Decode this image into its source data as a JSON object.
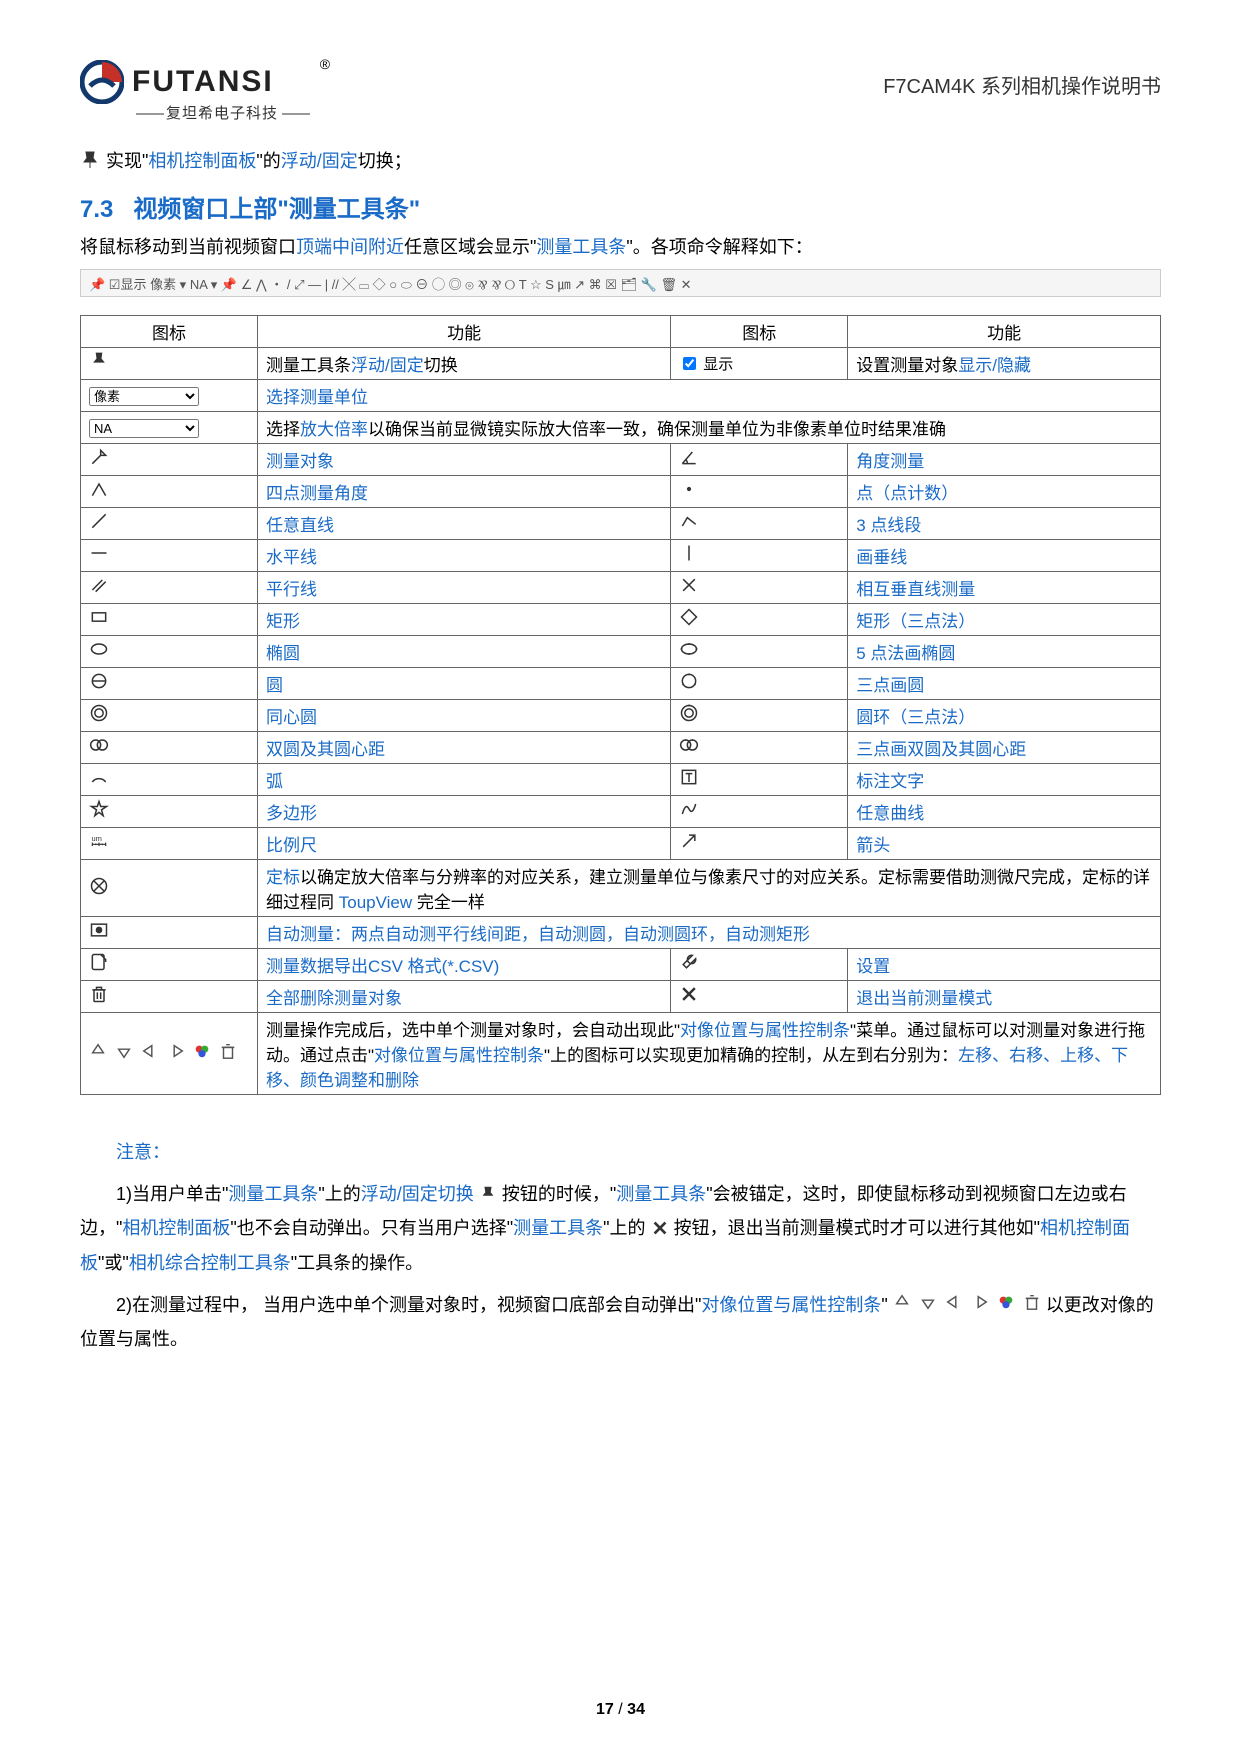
{
  "logo": {
    "name": "FUTANSI",
    "sub": "复坦希电子科技"
  },
  "doc_title": "F7CAM4K 系列相机操作说明书",
  "pin_line": {
    "pre": "实现\"",
    "link1": "相机控制面板",
    "mid": "\"的",
    "link2": "浮动/固定",
    "post": "切换；"
  },
  "section": {
    "num": "7.3",
    "title": "视频窗口上部\"测量工具条\""
  },
  "intro": {
    "t1": "将鼠标移动到当前视频窗口",
    "l1": "顶端中间附近",
    "t2": "任意区域会显示\"",
    "l2": "测量工具条",
    "t3": "\"。各项命令解释如下："
  },
  "toolbar_preview": "📌 ☑显示 像素 ▾ NA ▾  📌 ∠ ⋀ ・ / ⤢ — | // ╳ ▭ ◇ ○ ⬭ ⊖ ◯ ◎ ⊚ ⅋ ⅋ ⭘ T ☆ S ㎛ ↗ ⌘ ☒ 🗂 🔧 🗑 ✕",
  "thead": {
    "c1": "图标",
    "c2": "功能",
    "c3": "图标",
    "c4": "功能"
  },
  "rows": [
    {
      "i1": "pin",
      "f1": {
        "t": "测量工具条",
        "l": "浮动/固定",
        "t2": "切换"
      },
      "i2": "chk-show",
      "f2": {
        "t": "设置测量对象",
        "l": "显示/隐藏"
      }
    },
    {
      "i1": "sel-px",
      "f1_full_link": "选择测量单位",
      "span": 3
    },
    {
      "i1": "sel-na",
      "f1_mixed": {
        "t1": "选择",
        "l": "放大倍率",
        "t2": "以确保当前显微镜实际放大倍率一致，确保测量单位为非像素单位时结果准确"
      },
      "span": 3
    },
    {
      "i1": "arrow-pin",
      "f1_link": "测量对象",
      "i2": "angle",
      "f2_link": "角度测量"
    },
    {
      "i1": "four-angle",
      "f1_link": "四点测量角度",
      "i2": "dot",
      "f2_text_link": {
        "l": "点",
        "t": "（点计数）"
      }
    },
    {
      "i1": "line",
      "f1_link": "任意直线",
      "i2": "polyline3",
      "f2_text_link": {
        "l": "3 点线段"
      }
    },
    {
      "i1": "hline",
      "f1_link": "水平线",
      "i2": "vline",
      "f2_link": "画垂线"
    },
    {
      "i1": "parallel",
      "f1_link": "平行线",
      "i2": "cross",
      "f2_link": "相互垂直线测量"
    },
    {
      "i1": "rect",
      "f1_link": "矩形",
      "i2": "diamond",
      "f2_text_link": {
        "l": "矩形",
        "t": "（三点法）"
      }
    },
    {
      "i1": "ellipse",
      "f1_link": "椭圆",
      "i2": "ellipse5",
      "f2_text_link": {
        "l": "5 点法画椭圆"
      }
    },
    {
      "i1": "halfcircle",
      "f1_link": "圆",
      "i2": "circle3",
      "f2_link": "三点画圆"
    },
    {
      "i1": "concentric",
      "f1_link": "同心圆",
      "i2": "ring3",
      "f2_text_link": {
        "l": "圆环",
        "t": "（三点法）"
      }
    },
    {
      "i1": "twocircle",
      "f1_link": "双圆及其圆心距",
      "i2": "twocircle3",
      "f2_link": "三点画双圆及其圆心距"
    },
    {
      "i1": "arc",
      "f1_link": "弧",
      "i2": "text",
      "f2_link": "标注文字"
    },
    {
      "i1": "star",
      "f1_link": "多边形",
      "i2": "curve",
      "f2_link": "任意曲线"
    },
    {
      "i1": "scale",
      "f1_link": "比例尺",
      "i2": "arrow-ne",
      "f2_link": "箭头"
    },
    {
      "i1": "calib",
      "f1_calib": true,
      "span": 3
    },
    {
      "i1": "auto",
      "f1_auto": true,
      "span": 3
    },
    {
      "i1": "export",
      "f1_export": {
        "l": "测量数据导出",
        "tail": "CSV 格式(*.CSV)"
      },
      "i2": "wrench",
      "f2_link": "设置"
    },
    {
      "i1": "trash",
      "f1_link": "全部删除测量对象",
      "i2": "close",
      "f2_link": "退出当前测量模式"
    },
    {
      "i1": "pos-ctrl",
      "f1_posctrl": true,
      "span": 3
    }
  ],
  "calib_text": {
    "t1": "定标",
    "t2": "以确定放大倍率与分辨率的对应关系，建立测量单位与像素尺寸的对应关系。定标需要借助测微尺完成，定标的详细过程同 ",
    "l2": "ToupView",
    "t3": " 完全一样"
  },
  "auto_text": {
    "t1": "自动测量：两点自动测平行线间距，自动测圆，自动测圆环，自动测矩形"
  },
  "posctrl_text": {
    "t1": "测量操作完成后，选中单个测量对象时，会自动出现此\"",
    "l1": "对像位置与属性控制条",
    "t2": "\"菜单。通过鼠标可以对测量对象进行拖动。通过点击\"",
    "l2": "对像位置与属性控制条",
    "t3": "\"上的图标可以实现更加精确的控制，从左到右分别为：",
    "l3": "左移、右移、上移、下移、颜色调整和删除"
  },
  "icon_cell_labels": {
    "sel_px": "像素",
    "sel_na": "NA",
    "chk_show": "显示"
  },
  "notes": {
    "lead": "注意：",
    "n1": {
      "a": "1)当用户单击\"",
      "l1": "测量工具条",
      "b": "\"上的",
      "l2": "浮动/固定切换",
      "c": " 按钮的时候，\"",
      "l3": "测量工具条",
      "d": "\"会被锚定，这时，即使鼠标移动到视频窗口左边或右边，\"",
      "l4": "相机控制面板",
      "e": "\"也不会自动弹出。只有当用户选择\"",
      "l5": "测量工具条",
      "f": "\"上的 ",
      "g": " 按钮，退出当前测量模式时才可以进行其他如\"",
      "l6": "相机控制面板",
      "h": "\"或\"",
      "l7": "相机综合控制工具条",
      "i": "\"工具条的操作。"
    },
    "n2": {
      "a": "2)在测量过程中，  当用户选中单个测量对象时，视频窗口底部会自动弹出\"",
      "l1": "对像位置与属性控制条",
      "b": "\" ",
      "c": "以更改对像的位置与属性。"
    }
  },
  "footer": {
    "page": "17",
    "sep": " / ",
    "total": "34"
  },
  "colors": {
    "link": "#1a6bc7",
    "text": "#000",
    "border": "#666"
  }
}
